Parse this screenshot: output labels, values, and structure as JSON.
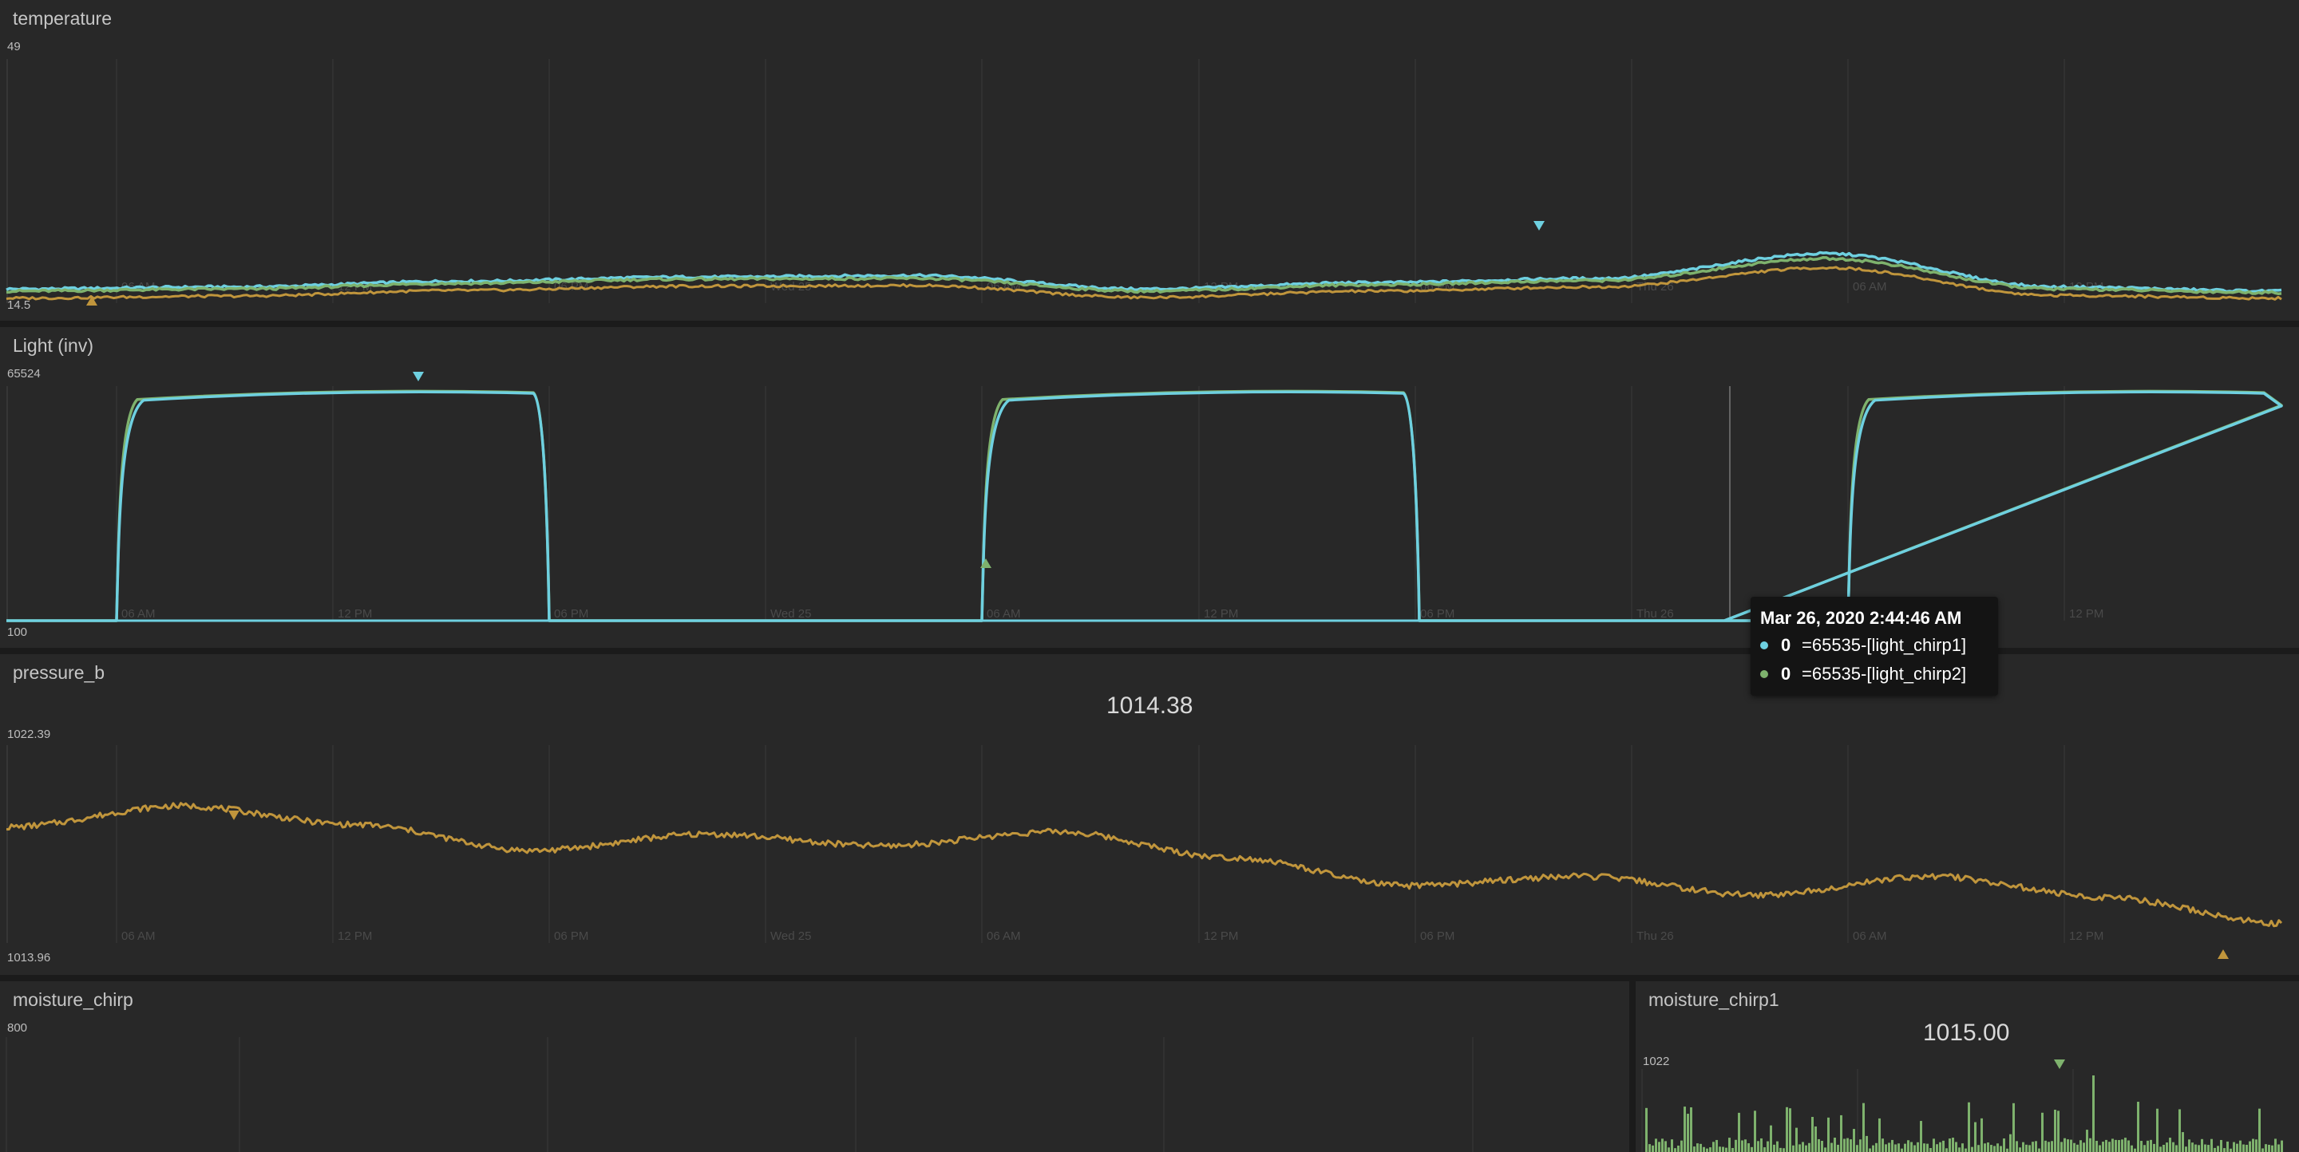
{
  "colors": {
    "series1": "#6ed0e0",
    "series2": "#7eb26d",
    "series3": "#c0953c",
    "series4": "#b8a44c",
    "grid": "#3a3a3a",
    "panel_bg": "#282828",
    "axis_text": "#4a4a4a"
  },
  "time_ticks": [
    "06 AM",
    "12 PM",
    "06 PM",
    "Wed 25",
    "06 AM",
    "12 PM",
    "06 PM",
    "Thu 26",
    "06 AM",
    "12 PM"
  ],
  "panels": {
    "temperature": {
      "title": "temperature",
      "y_max": "49",
      "y_min": "14.5"
    },
    "light": {
      "title": "Light (inv)",
      "y_max": "65524",
      "y_min": "100"
    },
    "pressure": {
      "title": "pressure_b",
      "big_value": "1014.38",
      "y_max": "1022.39",
      "y_min": "1013.96"
    },
    "moisture": {
      "title": "moisture_chirp",
      "y_max": "800"
    },
    "moisture1": {
      "title": "moisture_chirp1",
      "big_value": "1015.00",
      "y_max": "1022"
    }
  },
  "tooltip": {
    "title": "Mar 26, 2020 2:44:46 AM",
    "rows": [
      {
        "value": "0",
        "name": "=65535-[light_chirp1]",
        "color": "#6ed0e0"
      },
      {
        "value": "0",
        "name": "=65535-[light_chirp2]",
        "color": "#7eb26d"
      }
    ]
  },
  "chart_data": [
    {
      "type": "line",
      "title": "temperature",
      "ylim": [
        14.5,
        49
      ],
      "x": [
        "06 AM",
        "12 PM",
        "06 PM",
        "Wed 25",
        "06 AM",
        "12 PM",
        "06 PM",
        "Thu 26",
        "06 AM",
        "12 PM"
      ],
      "series": [
        {
          "values": [
            16.8,
            17.6,
            18.2,
            18.4,
            16.5,
            17.4,
            18.0,
            21.5,
            16.8,
            16.2
          ]
        },
        {
          "values": [
            16.5,
            17.3,
            17.9,
            18.0,
            16.2,
            17.1,
            17.7,
            20.8,
            16.5,
            16.0
          ]
        },
        {
          "values": [
            15.5,
            16.3,
            16.9,
            17.0,
            15.3,
            16.2,
            16.8,
            19.5,
            15.6,
            15.2
          ]
        }
      ]
    },
    {
      "type": "line",
      "title": "Light (inv)",
      "ylim": [
        100,
        65524
      ],
      "x": [
        "06 AM",
        "12 PM",
        "06 PM",
        "Wed 25",
        "06 AM",
        "12 PM",
        "06 PM",
        "Thu 26",
        "06 AM",
        "12 PM"
      ],
      "series": [
        {
          "values": [
            62000,
            64500,
            100,
            100,
            62000,
            64500,
            100,
            100,
            62500,
            64500
          ]
        },
        {
          "values": [
            63000,
            64700,
            100,
            100,
            63000,
            64700,
            100,
            100,
            63500,
            64700
          ]
        }
      ]
    },
    {
      "type": "line",
      "title": "pressure_b",
      "ylim": [
        1013.96,
        1022.39
      ],
      "x": [
        "06 AM",
        "12 PM",
        "06 PM",
        "Wed 25",
        "06 AM",
        "12 PM",
        "06 PM",
        "Thu 26",
        "06 AM",
        "12 PM"
      ],
      "series": [
        {
          "values": [
            1019.6,
            1019.3,
            1018.0,
            1018.2,
            1018.5,
            1017.6,
            1016.3,
            1016.5,
            1016.0,
            1015.3
          ]
        }
      ]
    }
  ]
}
